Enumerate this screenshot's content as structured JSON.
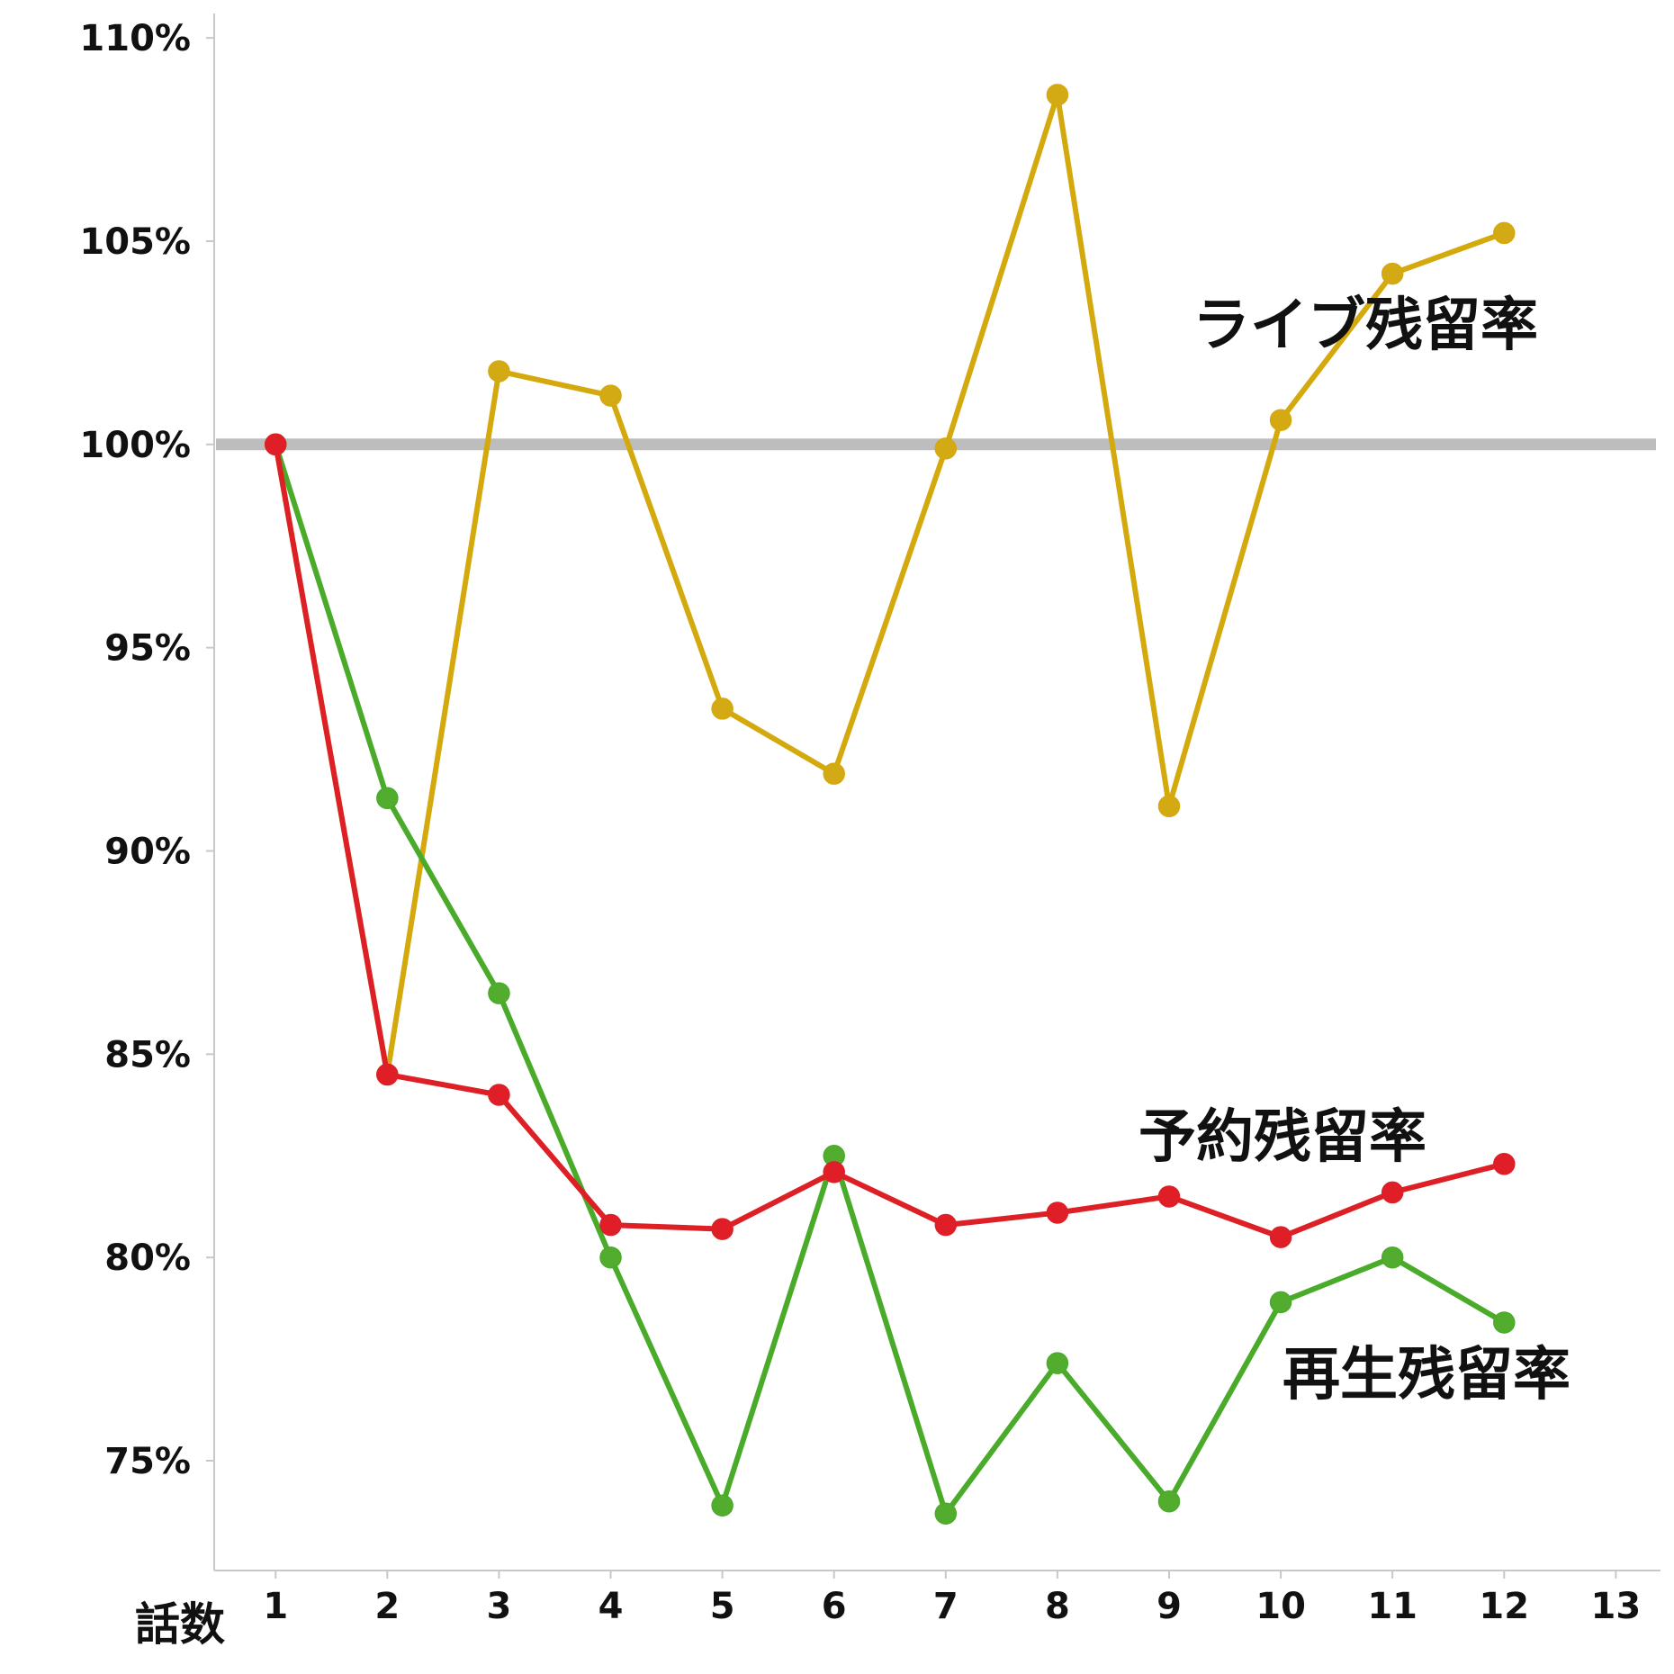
{
  "chart_data": {
    "type": "line",
    "xlabel": "話数",
    "ylabel": "",
    "x": [
      1,
      2,
      3,
      4,
      5,
      6,
      7,
      8,
      9,
      10,
      11,
      12
    ],
    "x_ticks": [
      "1",
      "2",
      "3",
      "4",
      "5",
      "6",
      "7",
      "8",
      "9",
      "10",
      "11",
      "12",
      "13"
    ],
    "xlim": [
      0.45,
      13.4
    ],
    "ylim": [
      72.3,
      110.6
    ],
    "y_ticks": [
      75,
      80,
      85,
      90,
      95,
      100,
      105,
      110
    ],
    "y_tick_labels": [
      "75%",
      "80%",
      "85%",
      "90%",
      "95%",
      "100%",
      "105%",
      "110%"
    ],
    "reference_line": {
      "value": 100,
      "color": "#bdbdbd"
    },
    "grid": false,
    "legend": "none",
    "series": [
      {
        "name": "ライブ残留率",
        "color": "#d4a90e",
        "marker_color": "#d4aa14",
        "values": [
          100,
          84.5,
          101.8,
          101.2,
          93.5,
          91.9,
          99.9,
          108.6,
          91.1,
          100.6,
          104.2,
          105.2
        ]
      },
      {
        "name": "再生残留率",
        "color": "#4aab2a",
        "marker_color": "#52ad2e",
        "values": [
          100,
          91.3,
          86.5,
          80.0,
          73.9,
          82.5,
          73.7,
          77.4,
          74.0,
          78.9,
          80.0,
          78.4
        ]
      },
      {
        "name": "予約残留率",
        "color": "#dd1f26",
        "marker_color": "#e01e27",
        "values": [
          100,
          84.5,
          84.0,
          80.8,
          80.7,
          82.1,
          80.8,
          81.1,
          81.5,
          80.5,
          81.6,
          82.3
        ]
      }
    ]
  }
}
